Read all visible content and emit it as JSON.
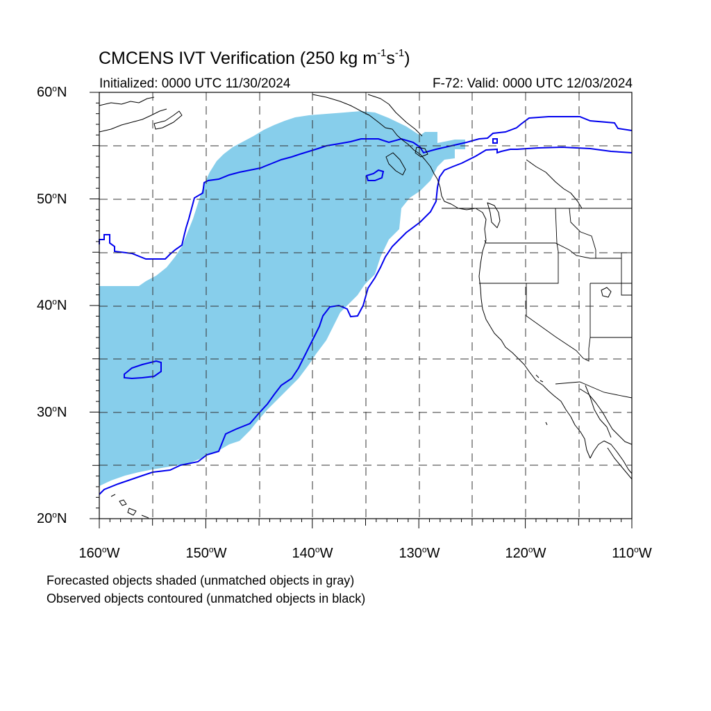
{
  "header": {
    "title_prefix": "CMCENS IVT Verification (250 kg m",
    "title_exp1": "-1",
    "title_mid": "s",
    "title_exp2": "-1",
    "title_suffix": ")",
    "initialized": "Initialized: 0000 UTC 11/30/2024",
    "valid": "F-72: Valid: 0000 UTC 12/03/2024"
  },
  "axes": {
    "latitudes": [
      {
        "value": "60",
        "hemi": "N"
      },
      {
        "value": "50",
        "hemi": "N"
      },
      {
        "value": "40",
        "hemi": "N"
      },
      {
        "value": "30",
        "hemi": "N"
      },
      {
        "value": "20",
        "hemi": "N"
      }
    ],
    "longitudes": [
      {
        "value": "160",
        "hemi": "W"
      },
      {
        "value": "150",
        "hemi": "W"
      },
      {
        "value": "140",
        "hemi": "W"
      },
      {
        "value": "130",
        "hemi": "W"
      },
      {
        "value": "120",
        "hemi": "W"
      },
      {
        "value": "110",
        "hemi": "W"
      }
    ],
    "degree_symbol": "o"
  },
  "map": {
    "extent": {
      "lon_min": -160,
      "lon_max": -110,
      "lat_min": 20,
      "lat_max": 60
    },
    "projection": "cylindrical-equidistant",
    "grid_spacing_deg": 5,
    "forecast_fill_color": "#87ceeb",
    "observed_contour_color": "#0000ee",
    "coast_color": "#000000"
  },
  "footnotes": {
    "line1": "Forecasted objects shaded (unmatched objects in gray)",
    "line2": "Observed objects contoured (unmatched objects in black)"
  }
}
